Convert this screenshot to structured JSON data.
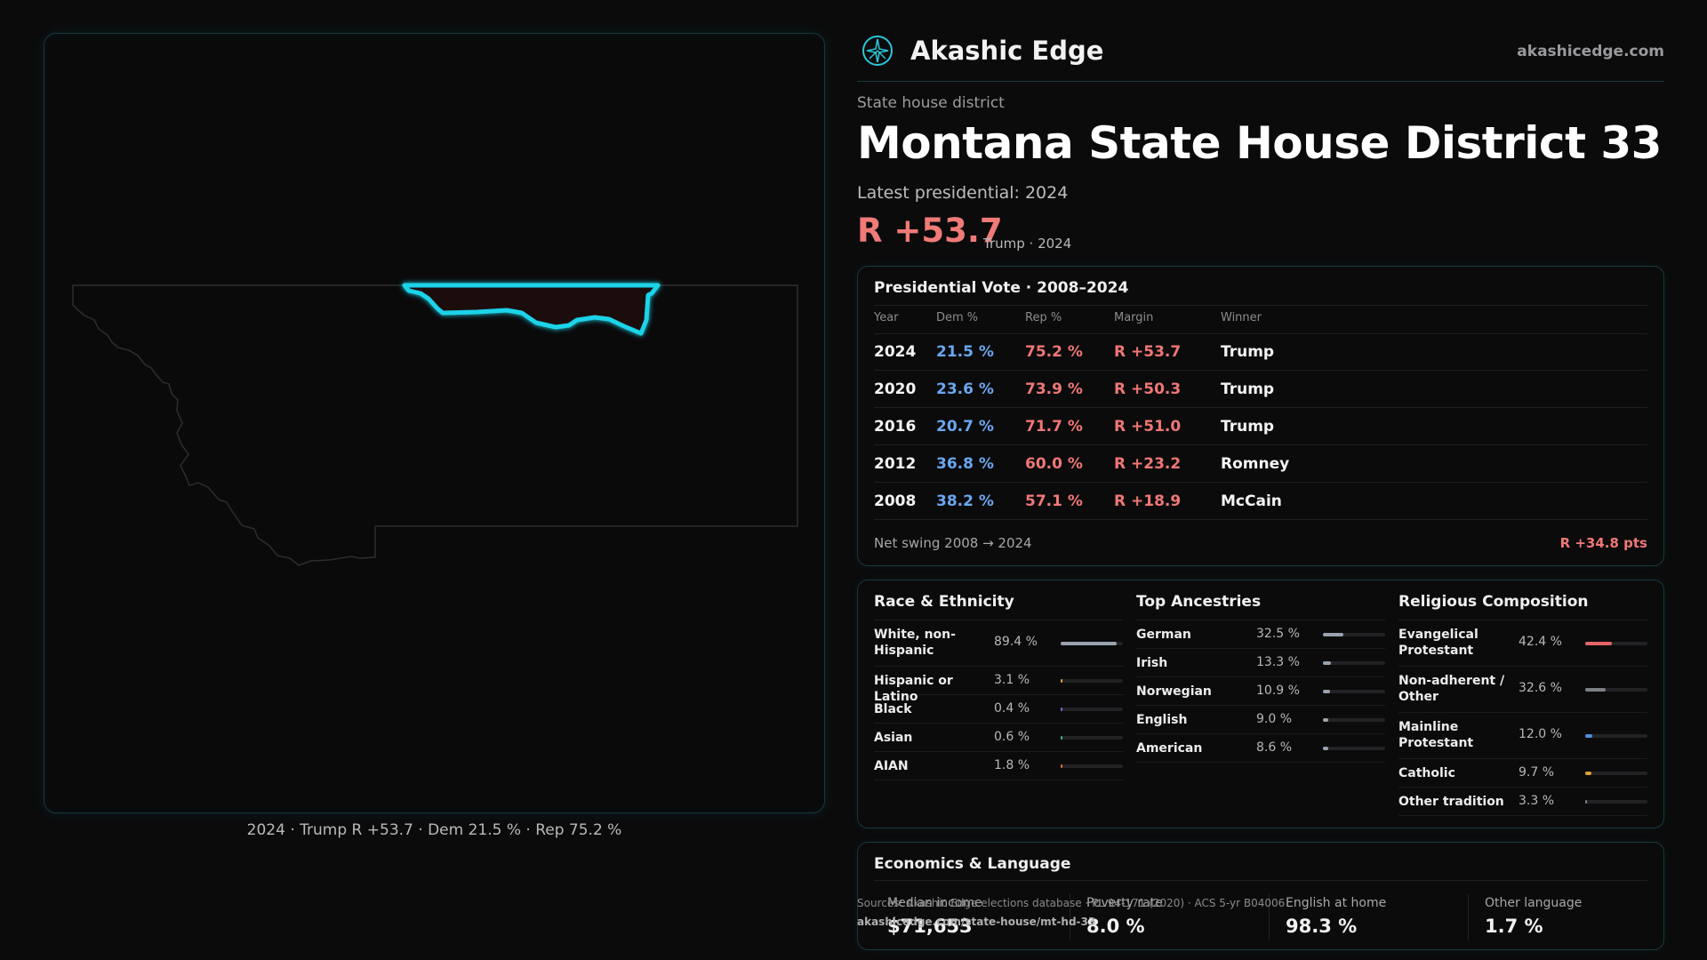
{
  "brand": {
    "name": "Akashic Edge",
    "url": "akashicedge.com",
    "logo_icon": "compass-star-icon",
    "accent_color": "#2bc6d8"
  },
  "header": {
    "kicker": "State house district",
    "title": "Montana State House District 33",
    "latest": "Latest presidential: 2024",
    "margin": "R +53.7",
    "margin_sub": "Trump · 2024"
  },
  "map": {
    "caption": "2024 · Trump R +53.7 · Dem 21.5 % · Rep 75.2 %",
    "state_outline_color": "#2d2d30",
    "district_outline_color": "#1fd3e8",
    "district_fill_color": "#1d0f11"
  },
  "presidential": {
    "title": "Presidential Vote · 2008–2024",
    "headers": {
      "year": "Year",
      "dem": "Dem %",
      "rep": "Rep %",
      "margin": "Margin",
      "winner": "Winner"
    },
    "rows": [
      {
        "year": "2024",
        "dem": "21.5 %",
        "rep": "75.2 %",
        "margin": "R +53.7",
        "winner": "Trump"
      },
      {
        "year": "2020",
        "dem": "23.6 %",
        "rep": "73.9 %",
        "margin": "R +50.3",
        "winner": "Trump"
      },
      {
        "year": "2016",
        "dem": "20.7 %",
        "rep": "71.7 %",
        "margin": "R +51.0",
        "winner": "Trump"
      },
      {
        "year": "2012",
        "dem": "36.8 %",
        "rep": "60.0 %",
        "margin": "R +23.2",
        "winner": "Romney"
      },
      {
        "year": "2008",
        "dem": "38.2 %",
        "rep": "57.1 %",
        "margin": "R +18.9",
        "winner": "McCain"
      }
    ],
    "swing_label": "Net swing 2008 → 2024",
    "swing_value": "R +34.8 pts"
  },
  "race": {
    "title": "Race & Ethnicity",
    "items": [
      {
        "label": "White, non-Hispanic",
        "value": "89.4 %",
        "pct": 89.4,
        "color": "#9aa3ad"
      },
      {
        "label": "Hispanic or Latino",
        "value": "3.1 %",
        "pct": 3.1,
        "color": "#e0a132"
      },
      {
        "label": "Black",
        "value": "0.4 %",
        "pct": 0.4,
        "color": "#7a6fd8"
      },
      {
        "label": "Asian",
        "value": "0.6 %",
        "pct": 0.6,
        "color": "#3fb58a"
      },
      {
        "label": "AIAN",
        "value": "1.8 %",
        "pct": 1.8,
        "color": "#e06a3a"
      }
    ]
  },
  "ancestry": {
    "title": "Top Ancestries",
    "items": [
      {
        "label": "German",
        "value": "32.5 %",
        "pct": 32.5,
        "color": "#9aa3ad"
      },
      {
        "label": "Irish",
        "value": "13.3 %",
        "pct": 13.3,
        "color": "#9aa3ad"
      },
      {
        "label": "Norwegian",
        "value": "10.9 %",
        "pct": 10.9,
        "color": "#9aa3ad"
      },
      {
        "label": "English",
        "value": "9.0 %",
        "pct": 9.0,
        "color": "#9aa3ad"
      },
      {
        "label": "American",
        "value": "8.6 %",
        "pct": 8.6,
        "color": "#9aa3ad"
      }
    ]
  },
  "religion": {
    "title": "Religious Composition",
    "items": [
      {
        "label": "Evangelical Protestant",
        "value": "42.4 %",
        "pct": 42.4,
        "color": "#e4646a"
      },
      {
        "label": "Non-adherent / Other",
        "value": "32.6 %",
        "pct": 32.6,
        "color": "#7b7f86"
      },
      {
        "label": "Mainline Protestant",
        "value": "12.0 %",
        "pct": 12.0,
        "color": "#4f8fe0"
      },
      {
        "label": "Catholic",
        "value": "9.7 %",
        "pct": 9.7,
        "color": "#e0a132"
      },
      {
        "label": "Other tradition",
        "value": "3.3 %",
        "pct": 3.3,
        "color": "#7b7f86"
      }
    ]
  },
  "economics": {
    "title": "Economics & Language",
    "items": [
      {
        "label": "Median income",
        "value": "$71,653"
      },
      {
        "label": "Poverty rate",
        "value": "8.0 %"
      },
      {
        "label": "English at home",
        "value": "98.3 %"
      },
      {
        "label": "Other language",
        "value": "1.7 %"
      }
    ]
  },
  "sources": {
    "line": "Sources: Akashic Edge elections database · PL 94-171 (2020) · ACS 5-yr B04006",
    "url": "akashicedge.com/state-house/mt-hd-33"
  }
}
